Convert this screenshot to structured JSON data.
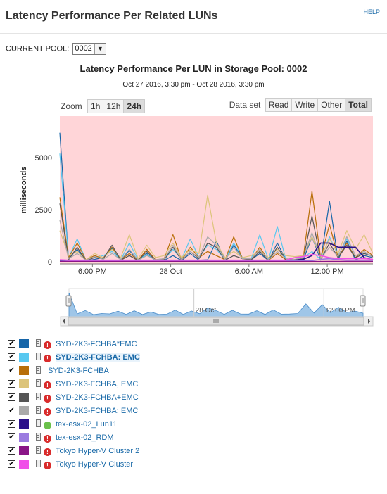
{
  "header": {
    "title": "Latency Performance Per Related LUNs",
    "help": "HELP"
  },
  "pool": {
    "label": "CURRENT POOL:",
    "value": "0002"
  },
  "chart_header": {
    "title": "Latency Performance Per LUN in Storage Pool: 0002",
    "subtitle": "Oct 27 2016, 3:30 pm - Oct 28 2016, 3:30 pm"
  },
  "zoom": {
    "label": "Zoom",
    "options": [
      "1h",
      "12h",
      "24h"
    ],
    "active": "24h"
  },
  "dataset": {
    "label": "Data set",
    "options": [
      "Read",
      "Write",
      "Other",
      "Total"
    ],
    "active": "Total"
  },
  "chart_data": {
    "type": "line",
    "ylabel": "milliseconds",
    "ylim": [
      -100,
      7000
    ],
    "y_ticks": [
      "0",
      "2500",
      "5000"
    ],
    "x_ticks": [
      "6:00 PM",
      "28 Oct",
      "6:00 AM",
      "12:00 PM"
    ],
    "navigator_ticks": [
      "28 Oct",
      "12:00 PM"
    ],
    "plot_background": "#ffd5d8",
    "x_hours": [
      0,
      0.67,
      1.33,
      2,
      2.67,
      3.33,
      4,
      4.67,
      5.33,
      6,
      6.67,
      7.33,
      8,
      8.67,
      9.33,
      10,
      10.67,
      11.33,
      12,
      12.67,
      13.33,
      14,
      14.67,
      15.33,
      16,
      16.67,
      17.33,
      18,
      18.67,
      19.33,
      20,
      20.67,
      21.33,
      22,
      22.67,
      23.33,
      24
    ],
    "series": [
      {
        "name": "SYD-2K3-FCHBA*EMC",
        "color": "#1565a8",
        "values": [
          6200,
          150,
          600,
          50,
          120,
          200,
          650,
          80,
          550,
          60,
          400,
          50,
          70,
          300,
          60,
          400,
          80,
          100,
          1000,
          60,
          800,
          200,
          100,
          400,
          60,
          900,
          100,
          60,
          100,
          1200,
          80,
          2900,
          100,
          1000,
          80,
          300,
          200
        ]
      },
      {
        "name": "SYD-2K3-FCHBA: EMC",
        "color": "#58c8f0",
        "values": [
          5200,
          200,
          1100,
          80,
          200,
          300,
          500,
          100,
          900,
          100,
          350,
          80,
          100,
          600,
          120,
          1100,
          200,
          800,
          600,
          100,
          900,
          200,
          150,
          1300,
          100,
          1700,
          100,
          100,
          200,
          500,
          100,
          1200,
          300,
          1100,
          300,
          400,
          300
        ]
      },
      {
        "name": "SYD-2K3-FCHBA",
        "color": "#b86e08",
        "values": [
          3100,
          200,
          900,
          100,
          300,
          150,
          700,
          100,
          400,
          80,
          600,
          100,
          150,
          1300,
          100,
          700,
          200,
          500,
          300,
          100,
          1200,
          150,
          100,
          700,
          80,
          400,
          100,
          200,
          250,
          3400,
          150,
          1800,
          200,
          900,
          200,
          600,
          300
        ]
      },
      {
        "name": "SYD-2K3-FCHBA, EMC",
        "color": "#dcc47a",
        "values": [
          1500,
          300,
          500,
          100,
          400,
          200,
          600,
          200,
          1300,
          150,
          800,
          200,
          300,
          900,
          200,
          600,
          400,
          3200,
          900,
          200,
          500,
          200,
          300,
          500,
          200,
          600,
          300,
          250,
          300,
          1200,
          200,
          1100,
          400,
          1500,
          600,
          1300,
          400
        ]
      },
      {
        "name": "SYD-2K3-FCHBA+EMC",
        "color": "#555555",
        "values": [
          2800,
          100,
          700,
          60,
          200,
          150,
          800,
          80,
          300,
          60,
          500,
          80,
          100,
          700,
          80,
          500,
          150,
          900,
          700,
          80,
          300,
          150,
          100,
          500,
          60,
          700,
          100,
          100,
          150,
          2200,
          100,
          900,
          200,
          800,
          200,
          400,
          250
        ]
      },
      {
        "name": "SYD-2K3-FCHBA; EMC",
        "color": "#aaaaaa",
        "values": [
          2000,
          150,
          400,
          80,
          250,
          120,
          400,
          100,
          600,
          80,
          300,
          100,
          150,
          800,
          100,
          500,
          200,
          1200,
          800,
          100,
          700,
          150,
          150,
          600,
          100,
          500,
          150,
          120,
          200,
          1400,
          150,
          700,
          250,
          1200,
          300,
          500,
          200
        ]
      },
      {
        "name": "tex-esx-02_Lun11",
        "color": "#2a0f8a",
        "values": [
          50,
          40,
          40,
          40,
          40,
          40,
          40,
          40,
          40,
          40,
          40,
          40,
          40,
          40,
          40,
          40,
          40,
          40,
          40,
          40,
          40,
          40,
          40,
          40,
          40,
          40,
          40,
          80,
          120,
          300,
          900,
          900,
          700,
          700,
          700,
          200,
          100
        ]
      },
      {
        "name": "tex-esx-02_RDM",
        "color": "#9b7be0",
        "values": [
          80,
          60,
          60,
          60,
          60,
          60,
          60,
          60,
          60,
          60,
          60,
          60,
          60,
          60,
          60,
          60,
          60,
          60,
          60,
          60,
          60,
          60,
          60,
          60,
          60,
          60,
          60,
          60,
          60,
          60,
          120,
          150,
          100,
          80,
          80,
          80,
          80
        ]
      },
      {
        "name": "Tokyo Hyper-V Cluster 2",
        "color": "#8a1587",
        "values": [
          20,
          10,
          10,
          10,
          10,
          10,
          10,
          10,
          10,
          10,
          10,
          10,
          10,
          10,
          10,
          10,
          10,
          10,
          10,
          10,
          10,
          10,
          10,
          10,
          10,
          10,
          10,
          10,
          10,
          10,
          10,
          20,
          20,
          20,
          20,
          20,
          20
        ]
      },
      {
        "name": "Tokyo Hyper-V Cluster",
        "color": "#f050e8",
        "values": [
          100,
          80,
          80,
          80,
          80,
          80,
          80,
          80,
          80,
          80,
          80,
          80,
          80,
          80,
          80,
          80,
          80,
          80,
          80,
          80,
          80,
          80,
          80,
          80,
          80,
          80,
          80,
          200,
          250,
          350,
          300,
          200,
          150,
          150,
          150,
          150,
          120
        ]
      }
    ]
  },
  "legend": {
    "items": [
      {
        "label": "SYD-2K3-FCHBA*EMC",
        "status": "err",
        "status_glyph": "!"
      },
      {
        "label": "SYD-2K3-FCHBA: EMC",
        "status": "err",
        "status_glyph": "!"
      },
      {
        "label": "SYD-2K3-FCHBA",
        "status": "none",
        "status_glyph": ""
      },
      {
        "label": "SYD-2K3-FCHBA, EMC",
        "status": "err",
        "status_glyph": "!"
      },
      {
        "label": "SYD-2K3-FCHBA+EMC",
        "status": "err",
        "status_glyph": "!"
      },
      {
        "label": "SYD-2K3-FCHBA; EMC",
        "status": "err",
        "status_glyph": "!"
      },
      {
        "label": "tex-esx-02_Lun11",
        "status": "ok",
        "status_glyph": ""
      },
      {
        "label": "tex-esx-02_RDM",
        "status": "err",
        "status_glyph": "!"
      },
      {
        "label": "Tokyo Hyper-V Cluster 2",
        "status": "err",
        "status_glyph": "!"
      },
      {
        "label": "Tokyo Hyper-V Cluster",
        "status": "err",
        "status_glyph": "!"
      }
    ],
    "selected_index": 1,
    "checkmark": "✔"
  }
}
